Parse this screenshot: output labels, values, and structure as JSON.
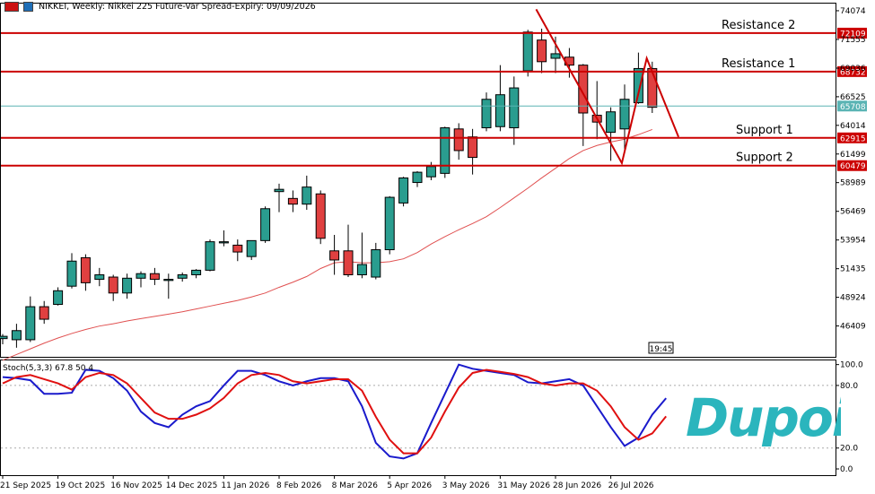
{
  "header": {
    "symbol_line": "NIKKEI, Weekly:  Nikkei 225 Future-Var Spread-Expiry: 09/09/2026"
  },
  "time_badge": "19:45",
  "brand": {
    "logo_text": "Dupoin",
    "color": "#2bb5bd"
  },
  "colors": {
    "bull": "#2a9d8f",
    "bear": "#e04040",
    "level_line": "#cc0000",
    "price_line": "#5ab4b4",
    "ma_line": "#e05050",
    "stoch_main": "#1a1acc",
    "stoch_signal": "#e01010"
  },
  "chart_data": [
    {
      "type": "candlestick",
      "title": "NIKKEI, Weekly:  Nikkei 225 Future-Var Spread-Expiry: 09/09/2026",
      "y_axis_ticks": [
        74074,
        71555,
        69036,
        66525,
        64014,
        61499,
        58989,
        56469,
        53954,
        51435,
        48924,
        46409
      ],
      "ylim": [
        43700,
        74700
      ],
      "x_tick_labels": [
        "21 Sep 2025",
        "19 Oct 2025",
        "16 Nov 2025",
        "14 Dec 2025",
        "11 Jan 2026",
        "8 Feb 2026",
        "8 Mar 2026",
        "5 Apr 2026",
        "3 May 2026",
        "31 May 2026",
        "28 Jun 2026",
        "26 Jul 2026"
      ],
      "candles": [
        {
          "o": 45300,
          "h": 45700,
          "l": 44800,
          "c": 45500
        },
        {
          "o": 45200,
          "h": 46600,
          "l": 44500,
          "c": 46000
        },
        {
          "o": 45200,
          "h": 49000,
          "l": 45000,
          "c": 48100
        },
        {
          "o": 48100,
          "h": 48600,
          "l": 46600,
          "c": 47000
        },
        {
          "o": 48300,
          "h": 49800,
          "l": 48200,
          "c": 49500
        },
        {
          "o": 49900,
          "h": 52800,
          "l": 49700,
          "c": 52100
        },
        {
          "o": 52400,
          "h": 52700,
          "l": 49500,
          "c": 50200
        },
        {
          "o": 50500,
          "h": 51500,
          "l": 49900,
          "c": 50900
        },
        {
          "o": 50700,
          "h": 50900,
          "l": 48600,
          "c": 49300
        },
        {
          "o": 49300,
          "h": 51000,
          "l": 48800,
          "c": 50600
        },
        {
          "o": 50600,
          "h": 51200,
          "l": 49800,
          "c": 51000
        },
        {
          "o": 51000,
          "h": 51500,
          "l": 50000,
          "c": 50500
        },
        {
          "o": 50400,
          "h": 51000,
          "l": 48800,
          "c": 50500
        },
        {
          "o": 50600,
          "h": 51100,
          "l": 50300,
          "c": 50900
        },
        {
          "o": 50900,
          "h": 51400,
          "l": 50600,
          "c": 51300
        },
        {
          "o": 51300,
          "h": 54000,
          "l": 51200,
          "c": 53800
        },
        {
          "o": 53700,
          "h": 54800,
          "l": 53400,
          "c": 53800
        },
        {
          "o": 53500,
          "h": 54000,
          "l": 52100,
          "c": 52900
        },
        {
          "o": 52500,
          "h": 53800,
          "l": 52200,
          "c": 53900
        },
        {
          "o": 53900,
          "h": 56900,
          "l": 53700,
          "c": 56700
        },
        {
          "o": 58200,
          "h": 58900,
          "l": 56400,
          "c": 58400
        },
        {
          "o": 57600,
          "h": 58300,
          "l": 56400,
          "c": 57100
        },
        {
          "o": 57100,
          "h": 59600,
          "l": 56600,
          "c": 58600
        },
        {
          "o": 58000,
          "h": 58300,
          "l": 53600,
          "c": 54100
        },
        {
          "o": 53000,
          "h": 54400,
          "l": 50900,
          "c": 52200
        },
        {
          "o": 53000,
          "h": 55300,
          "l": 50700,
          "c": 50900
        },
        {
          "o": 50900,
          "h": 54600,
          "l": 50600,
          "c": 51800
        },
        {
          "o": 50700,
          "h": 53700,
          "l": 50500,
          "c": 53100
        },
        {
          "o": 53100,
          "h": 57800,
          "l": 52700,
          "c": 57700
        },
        {
          "o": 57200,
          "h": 59500,
          "l": 56900,
          "c": 59400
        },
        {
          "o": 59000,
          "h": 60000,
          "l": 58600,
          "c": 59900
        },
        {
          "o": 59500,
          "h": 60800,
          "l": 59200,
          "c": 60400
        },
        {
          "o": 59800,
          "h": 63900,
          "l": 59400,
          "c": 63800
        },
        {
          "o": 63700,
          "h": 64200,
          "l": 61000,
          "c": 61800
        },
        {
          "o": 63000,
          "h": 63700,
          "l": 59700,
          "c": 61200
        },
        {
          "o": 63800,
          "h": 66900,
          "l": 63500,
          "c": 66300
        },
        {
          "o": 63900,
          "h": 69300,
          "l": 63500,
          "c": 66700
        },
        {
          "o": 63800,
          "h": 68300,
          "l": 62300,
          "c": 67300
        },
        {
          "o": 68800,
          "h": 72400,
          "l": 68300,
          "c": 72200
        },
        {
          "o": 71500,
          "h": 72500,
          "l": 68600,
          "c": 69600
        },
        {
          "o": 69900,
          "h": 71800,
          "l": 68600,
          "c": 70300
        },
        {
          "o": 70000,
          "h": 70800,
          "l": 68200,
          "c": 69300
        },
        {
          "o": 69300,
          "h": 69400,
          "l": 62200,
          "c": 65100
        },
        {
          "o": 64900,
          "h": 67900,
          "l": 62800,
          "c": 64300
        },
        {
          "o": 63400,
          "h": 65600,
          "l": 60900,
          "c": 65200
        },
        {
          "o": 63700,
          "h": 67600,
          "l": 61900,
          "c": 66300
        },
        {
          "o": 66000,
          "h": 70400,
          "l": 65900,
          "c": 69000
        },
        {
          "o": 69000,
          "h": 69600,
          "l": 65100,
          "c": 65600
        }
      ],
      "moving_average": [
        43400,
        43900,
        44400,
        44900,
        45350,
        45750,
        46100,
        46400,
        46600,
        46850,
        47050,
        47250,
        47450,
        47650,
        47900,
        48150,
        48400,
        48650,
        48950,
        49300,
        49800,
        50250,
        50750,
        51450,
        51950,
        52050,
        51950,
        51950,
        52050,
        52300,
        52850,
        53600,
        54250,
        54850,
        55400,
        56000,
        56800,
        57650,
        58500,
        59400,
        60250,
        61100,
        61800,
        62250,
        62550,
        62800,
        63200,
        63650
      ],
      "levels": [
        {
          "name": "Resistance 2",
          "value": 72109,
          "label": "72109"
        },
        {
          "name": "Resistance 1",
          "value": 68732,
          "label": "68732"
        },
        {
          "name": "Support 1",
          "value": 62915,
          "label": "62915"
        },
        {
          "name": "Support 2",
          "value": 60479,
          "label": "60479"
        }
      ],
      "current_price": {
        "value": 65708,
        "label": "65708"
      },
      "pattern_line": [
        {
          "i": 38.6,
          "y": 74200
        },
        {
          "i": 44.8,
          "y": 60700
        },
        {
          "i": 46.6,
          "y": 69900
        },
        {
          "i": 48.9,
          "y": 63000
        }
      ]
    },
    {
      "type": "line",
      "title": "Stoch(5,3,3) 67.8 50.4",
      "y_axis_ticks": [
        100.0,
        80.0,
        20.0,
        0.0
      ],
      "tick_labels": [
        "100.0",
        "80.0",
        "20.0",
        "0.0"
      ],
      "ylim": [
        -6,
        104
      ],
      "dashed_levels": [
        80,
        20
      ],
      "series": [
        {
          "values": [
            88,
            87,
            85,
            72,
            72,
            73,
            95,
            94,
            87,
            75,
            55,
            44,
            40,
            52,
            60,
            65,
            80,
            94,
            94,
            90,
            84,
            80,
            84,
            87,
            87,
            84,
            60,
            25,
            12,
            10,
            15,
            44,
            72,
            100,
            96,
            94,
            92,
            90,
            83,
            82,
            84,
            86,
            80,
            60,
            40,
            22,
            30,
            52,
            67.8
          ]
        },
        {
          "values": [
            82,
            88,
            90,
            86,
            82,
            76,
            88,
            92,
            90,
            82,
            68,
            54,
            48,
            48,
            52,
            58,
            68,
            82,
            90,
            92,
            90,
            84,
            82,
            84,
            86,
            86,
            75,
            50,
            28,
            15,
            15,
            30,
            55,
            78,
            92,
            95,
            93,
            91,
            88,
            82,
            80,
            82,
            82,
            75,
            60,
            40,
            28,
            34,
            50.4
          ]
        }
      ],
      "x_tick_labels": [
        "21 Sep 2025",
        "19 Oct 2025",
        "16 Nov 2025",
        "14 Dec 2025",
        "11 Jan 2026",
        "8 Feb 2026",
        "8 Mar 2026",
        "5 Apr 2026",
        "3 May 2026",
        "31 May 2026",
        "28 Jun 2026",
        "26 Jul 2026"
      ]
    }
  ]
}
